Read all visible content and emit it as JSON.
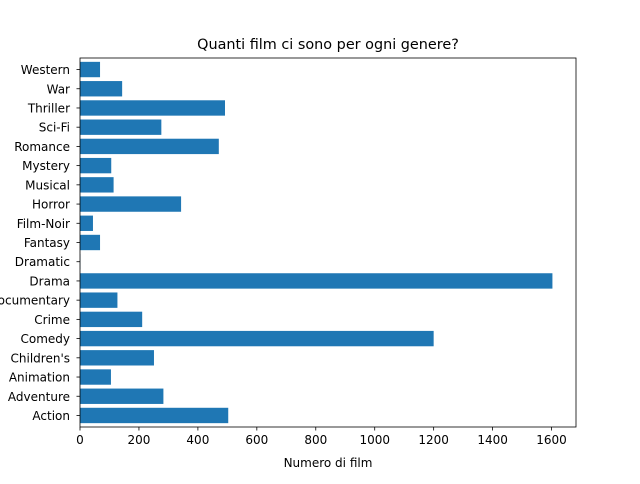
{
  "chart_data": {
    "type": "bar",
    "orientation": "horizontal",
    "title": "Quanti film ci sono per ogni genere?",
    "xlabel": "Numero di film",
    "ylabel": "",
    "xlim": [
      0,
      1683
    ],
    "xticks": [
      0,
      200,
      400,
      600,
      800,
      1000,
      1200,
      1400,
      1600
    ],
    "xtick_labels": [
      "0",
      "200",
      "400",
      "600",
      "800",
      "1000",
      "1200",
      "1400",
      "1600"
    ],
    "grid": false,
    "bar_color": "#1f77b4",
    "categories": [
      "Action",
      "Adventure",
      "Animation",
      "Children's",
      "Comedy",
      "Crime",
      "Documentary",
      "Drama",
      "Dramatic",
      "Fantasy",
      "Film-Noir",
      "Horror",
      "Musical",
      "Mystery",
      "Romance",
      "Sci-Fi",
      "Thriller",
      "War",
      "Western"
    ],
    "values": [
      503,
      283,
      105,
      251,
      1200,
      211,
      127,
      1603,
      1,
      68,
      44,
      343,
      114,
      106,
      471,
      276,
      492,
      143,
      68
    ]
  }
}
